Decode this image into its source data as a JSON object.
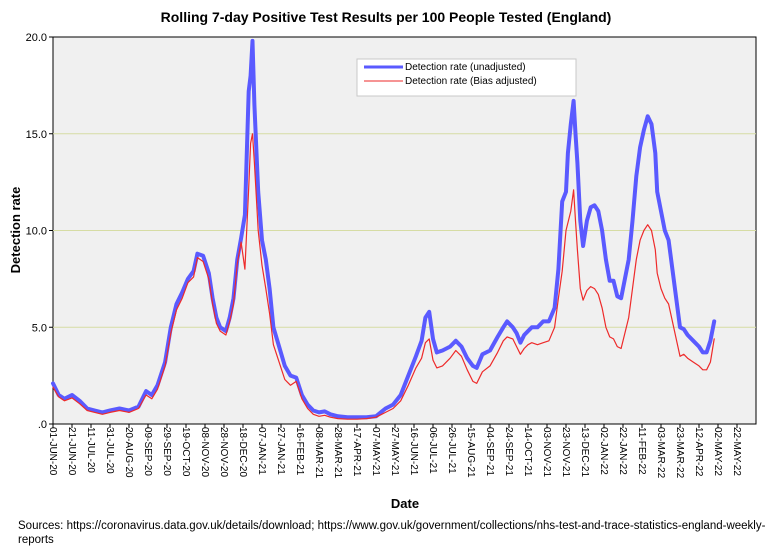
{
  "chart_data": {
    "type": "line",
    "title": "Rolling 7-day Positive Test Results per 100 People Tested (England)",
    "xlabel": "Date",
    "ylabel": "Detection rate",
    "ylim": [
      0,
      20
    ],
    "yticks": [
      ".0",
      "5.0",
      "10.0",
      "15.0",
      "20.0"
    ],
    "grid": "horizontal",
    "legend_position": "top-center",
    "x_tick_labels": [
      "01-JUN-20",
      "21-JUN-20",
      "11-JUL-20",
      "31-JUL-20",
      "20-AUG-20",
      "09-SEP-20",
      "29-SEP-20",
      "19-OCT-20",
      "08-NOV-20",
      "28-NOV-20",
      "18-DEC-20",
      "07-JAN-21",
      "27-JAN-21",
      "16-FEB-21",
      "08-MAR-21",
      "28-MAR-21",
      "17-APR-21",
      "07-MAY-21",
      "27-MAY-21",
      "16-JUN-21",
      "06-JUL-21",
      "26-JUL-21",
      "15-AUG-21",
      "04-SEP-21",
      "24-SEP-21",
      "14-OCT-21",
      "03-NOV-21",
      "23-NOV-21",
      "13-DEC-21",
      "02-JAN-22",
      "22-JAN-22",
      "11-FEB-22",
      "03-MAR-22",
      "23-MAR-22",
      "12-APR-22",
      "02-MAY-22",
      "22-MAY-22"
    ],
    "x_days_range": [
      0,
      740
    ],
    "series": [
      {
        "name": "Detection rate (unadjusted)",
        "color": "#5a5aff",
        "points": [
          [
            0,
            2.1
          ],
          [
            6,
            1.5
          ],
          [
            12,
            1.3
          ],
          [
            20,
            1.5
          ],
          [
            28,
            1.2
          ],
          [
            36,
            0.8
          ],
          [
            44,
            0.7
          ],
          [
            52,
            0.6
          ],
          [
            60,
            0.7
          ],
          [
            70,
            0.8
          ],
          [
            80,
            0.7
          ],
          [
            90,
            0.9
          ],
          [
            98,
            1.7
          ],
          [
            104,
            1.5
          ],
          [
            110,
            2.0
          ],
          [
            118,
            3.2
          ],
          [
            124,
            5.0
          ],
          [
            130,
            6.2
          ],
          [
            136,
            6.8
          ],
          [
            142,
            7.5
          ],
          [
            148,
            7.9
          ],
          [
            152,
            8.8
          ],
          [
            158,
            8.7
          ],
          [
            164,
            7.8
          ],
          [
            168,
            6.5
          ],
          [
            172,
            5.5
          ],
          [
            176,
            5.0
          ],
          [
            182,
            4.8
          ],
          [
            186,
            5.5
          ],
          [
            190,
            6.5
          ],
          [
            194,
            8.5
          ],
          [
            198,
            9.6
          ],
          [
            202,
            10.8
          ],
          [
            206,
            17.2
          ],
          [
            208,
            18.0
          ],
          [
            210,
            19.8
          ],
          [
            212,
            16.5
          ],
          [
            216,
            12.0
          ],
          [
            220,
            9.5
          ],
          [
            224,
            8.5
          ],
          [
            228,
            7.0
          ],
          [
            232,
            5.0
          ],
          [
            238,
            4.0
          ],
          [
            244,
            3.0
          ],
          [
            250,
            2.5
          ],
          [
            256,
            2.4
          ],
          [
            262,
            1.5
          ],
          [
            268,
            1.0
          ],
          [
            274,
            0.7
          ],
          [
            280,
            0.6
          ],
          [
            286,
            0.65
          ],
          [
            292,
            0.5
          ],
          [
            300,
            0.4
          ],
          [
            310,
            0.35
          ],
          [
            320,
            0.35
          ],
          [
            330,
            0.35
          ],
          [
            340,
            0.4
          ],
          [
            350,
            0.8
          ],
          [
            358,
            1.0
          ],
          [
            366,
            1.5
          ],
          [
            374,
            2.5
          ],
          [
            382,
            3.5
          ],
          [
            388,
            4.3
          ],
          [
            392,
            5.5
          ],
          [
            396,
            5.8
          ],
          [
            400,
            4.4
          ],
          [
            404,
            3.7
          ],
          [
            410,
            3.8
          ],
          [
            418,
            4.0
          ],
          [
            424,
            4.3
          ],
          [
            430,
            4.0
          ],
          [
            436,
            3.4
          ],
          [
            442,
            3.0
          ],
          [
            446,
            2.9
          ],
          [
            452,
            3.6
          ],
          [
            460,
            3.8
          ],
          [
            468,
            4.5
          ],
          [
            474,
            5.0
          ],
          [
            478,
            5.3
          ],
          [
            484,
            5.0
          ],
          [
            488,
            4.7
          ],
          [
            492,
            4.2
          ],
          [
            496,
            4.6
          ],
          [
            500,
            4.8
          ],
          [
            504,
            5.0
          ],
          [
            510,
            5.0
          ],
          [
            516,
            5.3
          ],
          [
            522,
            5.3
          ],
          [
            528,
            6.0
          ],
          [
            532,
            8.0
          ],
          [
            536,
            11.5
          ],
          [
            540,
            12.0
          ],
          [
            542,
            14.0
          ],
          [
            545,
            15.5
          ],
          [
            548,
            16.7
          ],
          [
            550,
            15.0
          ],
          [
            552,
            13.5
          ],
          [
            555,
            10.5
          ],
          [
            558,
            9.2
          ],
          [
            562,
            10.5
          ],
          [
            566,
            11.2
          ],
          [
            570,
            11.3
          ],
          [
            574,
            11.0
          ],
          [
            578,
            10.0
          ],
          [
            582,
            8.5
          ],
          [
            586,
            7.4
          ],
          [
            590,
            7.4
          ],
          [
            594,
            6.6
          ],
          [
            598,
            6.5
          ],
          [
            602,
            7.5
          ],
          [
            606,
            8.5
          ],
          [
            610,
            10.5
          ],
          [
            614,
            12.8
          ],
          [
            618,
            14.3
          ],
          [
            622,
            15.2
          ],
          [
            626,
            15.9
          ],
          [
            630,
            15.5
          ],
          [
            634,
            14.0
          ],
          [
            636,
            12.0
          ],
          [
            640,
            11.0
          ],
          [
            644,
            10.0
          ],
          [
            648,
            9.5
          ],
          [
            652,
            8.0
          ],
          [
            656,
            6.5
          ],
          [
            660,
            5.0
          ],
          [
            664,
            4.9
          ],
          [
            668,
            4.6
          ],
          [
            674,
            4.3
          ],
          [
            680,
            4.0
          ],
          [
            684,
            3.7
          ],
          [
            688,
            3.7
          ],
          [
            692,
            4.3
          ],
          [
            696,
            5.3
          ]
        ]
      },
      {
        "name": "Detection rate (Bias adjusted)",
        "color": "#ee2a2a",
        "points": [
          [
            0,
            1.9
          ],
          [
            6,
            1.4
          ],
          [
            12,
            1.2
          ],
          [
            20,
            1.35
          ],
          [
            28,
            1.05
          ],
          [
            36,
            0.7
          ],
          [
            44,
            0.6
          ],
          [
            52,
            0.5
          ],
          [
            60,
            0.6
          ],
          [
            70,
            0.7
          ],
          [
            80,
            0.6
          ],
          [
            90,
            0.8
          ],
          [
            98,
            1.5
          ],
          [
            104,
            1.3
          ],
          [
            110,
            1.8
          ],
          [
            118,
            3.0
          ],
          [
            124,
            4.7
          ],
          [
            130,
            5.9
          ],
          [
            136,
            6.5
          ],
          [
            142,
            7.3
          ],
          [
            148,
            7.6
          ],
          [
            152,
            8.6
          ],
          [
            158,
            8.4
          ],
          [
            164,
            7.5
          ],
          [
            168,
            6.2
          ],
          [
            172,
            5.2
          ],
          [
            176,
            4.8
          ],
          [
            182,
            4.6
          ],
          [
            186,
            5.3
          ],
          [
            190,
            6.2
          ],
          [
            194,
            8.3
          ],
          [
            198,
            9.4
          ],
          [
            202,
            8.0
          ],
          [
            206,
            12.2
          ],
          [
            208,
            14.5
          ],
          [
            210,
            15.0
          ],
          [
            212,
            13.5
          ],
          [
            216,
            10.0
          ],
          [
            220,
            8.2
          ],
          [
            224,
            7.0
          ],
          [
            228,
            5.7
          ],
          [
            232,
            4.1
          ],
          [
            238,
            3.2
          ],
          [
            244,
            2.3
          ],
          [
            250,
            2.0
          ],
          [
            256,
            2.2
          ],
          [
            262,
            1.3
          ],
          [
            268,
            0.8
          ],
          [
            274,
            0.5
          ],
          [
            280,
            0.4
          ],
          [
            286,
            0.45
          ],
          [
            292,
            0.35
          ],
          [
            300,
            0.28
          ],
          [
            310,
            0.25
          ],
          [
            320,
            0.25
          ],
          [
            330,
            0.28
          ],
          [
            340,
            0.35
          ],
          [
            350,
            0.6
          ],
          [
            358,
            0.8
          ],
          [
            366,
            1.2
          ],
          [
            374,
            2.0
          ],
          [
            382,
            2.9
          ],
          [
            388,
            3.4
          ],
          [
            392,
            4.2
          ],
          [
            396,
            4.4
          ],
          [
            400,
            3.3
          ],
          [
            404,
            2.9
          ],
          [
            410,
            3.0
          ],
          [
            418,
            3.4
          ],
          [
            424,
            3.8
          ],
          [
            430,
            3.5
          ],
          [
            436,
            2.8
          ],
          [
            442,
            2.2
          ],
          [
            446,
            2.1
          ],
          [
            452,
            2.7
          ],
          [
            460,
            3.0
          ],
          [
            468,
            3.7
          ],
          [
            474,
            4.3
          ],
          [
            478,
            4.5
          ],
          [
            484,
            4.4
          ],
          [
            488,
            4.0
          ],
          [
            492,
            3.6
          ],
          [
            496,
            3.9
          ],
          [
            500,
            4.1
          ],
          [
            504,
            4.2
          ],
          [
            510,
            4.1
          ],
          [
            516,
            4.2
          ],
          [
            522,
            4.3
          ],
          [
            528,
            5.0
          ],
          [
            532,
            6.5
          ],
          [
            536,
            7.9
          ],
          [
            540,
            10.0
          ],
          [
            545,
            11.0
          ],
          [
            548,
            12.1
          ],
          [
            550,
            10.5
          ],
          [
            552,
            9.0
          ],
          [
            555,
            7.0
          ],
          [
            558,
            6.4
          ],
          [
            562,
            6.9
          ],
          [
            566,
            7.1
          ],
          [
            570,
            7.0
          ],
          [
            574,
            6.7
          ],
          [
            578,
            6.0
          ],
          [
            582,
            5.0
          ],
          [
            586,
            4.5
          ],
          [
            590,
            4.4
          ],
          [
            594,
            4.0
          ],
          [
            598,
            3.9
          ],
          [
            602,
            4.7
          ],
          [
            606,
            5.5
          ],
          [
            610,
            7.0
          ],
          [
            614,
            8.5
          ],
          [
            618,
            9.5
          ],
          [
            622,
            10.0
          ],
          [
            626,
            10.3
          ],
          [
            630,
            10.0
          ],
          [
            634,
            9.0
          ],
          [
            636,
            7.8
          ],
          [
            640,
            7.0
          ],
          [
            644,
            6.5
          ],
          [
            648,
            6.2
          ],
          [
            652,
            5.3
          ],
          [
            656,
            4.4
          ],
          [
            660,
            3.5
          ],
          [
            664,
            3.6
          ],
          [
            668,
            3.4
          ],
          [
            674,
            3.2
          ],
          [
            680,
            3.0
          ],
          [
            684,
            2.8
          ],
          [
            688,
            2.8
          ],
          [
            692,
            3.2
          ],
          [
            696,
            4.4
          ]
        ]
      }
    ]
  },
  "source_text": "Sources: https://coronavirus.data.gov.uk/details/download; https://www.gov.uk/government/collections/nhs-test-and-trace-statistics-england-weekly-reports"
}
